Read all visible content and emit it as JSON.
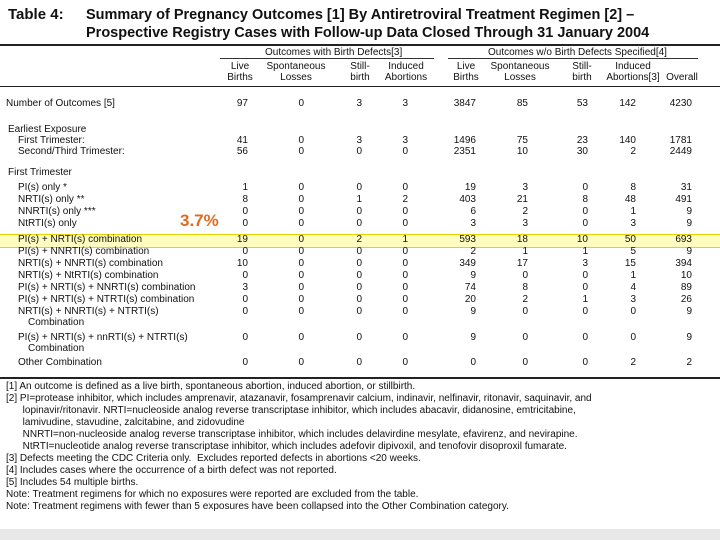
{
  "header": {
    "label": "Table 4:",
    "title_line1": "Summary of Pregnancy Outcomes [1] By Antiretroviral Treatment Regimen [2] –",
    "title_line2": "Prospective Registry Cases with Follow-up Data Closed Through 31 January 2004"
  },
  "columns": {
    "group1": "Outcomes with Birth Defects[3]",
    "group2": "Outcomes w/o Birth Defects Specified[4]",
    "col1_l1": "Live",
    "col1_l2": "Births",
    "col2_l1": "Spontaneous",
    "col2_l2": "Losses",
    "col3_l1": "Still-",
    "col3_l2": "birth",
    "col4_l1": "Induced",
    "col4_l2": "Abortions",
    "col5_l1": "Live",
    "col5_l2": "Births",
    "col6_l1": "Spontaneous",
    "col6_l2": "Losses",
    "col7_l1": "Still-",
    "col7_l2": "birth",
    "col8_l1": "Induced",
    "col8_l2": "Abortions[3]",
    "col9": "Overall"
  },
  "rows": [
    {
      "label": "Number of Outcomes [5]",
      "values": [
        "97",
        "0",
        "3",
        "3",
        "3847",
        "85",
        "53",
        "142",
        "4230"
      ]
    },
    {
      "label": "Earliest Exposure",
      "values": [
        "",
        "",
        "",
        "",
        "",
        "",
        "",
        "",
        ""
      ]
    },
    {
      "label": "First Trimester:",
      "values": [
        "41",
        "0",
        "3",
        "3",
        "1496",
        "75",
        "23",
        "140",
        "1781"
      ]
    },
    {
      "label": "Second/Third Trimester:",
      "values": [
        "56",
        "0",
        "0",
        "0",
        "2351",
        "10",
        "30",
        "2",
        "2449"
      ]
    },
    {
      "label": "First Trimester",
      "values": [
        "",
        "",
        "",
        "",
        "",
        "",
        "",
        "",
        ""
      ]
    },
    {
      "label": "PI(s) only *",
      "values": [
        "1",
        "0",
        "0",
        "0",
        "19",
        "3",
        "0",
        "8",
        "31"
      ]
    },
    {
      "label": "NRTI(s) only **",
      "values": [
        "8",
        "0",
        "1",
        "2",
        "403",
        "21",
        "8",
        "48",
        "491"
      ]
    },
    {
      "label": "NNRTI(s) only ***",
      "values": [
        "0",
        "0",
        "0",
        "0",
        "6",
        "2",
        "0",
        "1",
        "9"
      ]
    },
    {
      "label": "NtRTI(s) only",
      "values": [
        "0",
        "0",
        "0",
        "0",
        "3",
        "3",
        "0",
        "3",
        "9"
      ]
    },
    {
      "label": "PI(s) + NRTI(s) combination",
      "values": [
        "19",
        "0",
        "2",
        "1",
        "593",
        "18",
        "10",
        "50",
        "693"
      ]
    },
    {
      "label": "PI(s) + NNRTI(s) combination",
      "values": [
        "0",
        "0",
        "0",
        "0",
        "2",
        "1",
        "1",
        "5",
        "9"
      ]
    },
    {
      "label": "NRTI(s) + NNRTI(s) combination",
      "values": [
        "10",
        "0",
        "0",
        "0",
        "349",
        "17",
        "3",
        "15",
        "394"
      ]
    },
    {
      "label": "NRTI(s) + NtRTI(s) combination",
      "values": [
        "0",
        "0",
        "0",
        "0",
        "9",
        "0",
        "0",
        "1",
        "10"
      ]
    },
    {
      "label": "PI(s) + NRTI(s) + NNRTI(s) combination",
      "values": [
        "3",
        "0",
        "0",
        "0",
        "74",
        "8",
        "0",
        "4",
        "89"
      ]
    },
    {
      "label": "PI(s) + NRTI(s) + NTRTI(s) combination",
      "values": [
        "0",
        "0",
        "0",
        "0",
        "20",
        "2",
        "1",
        "3",
        "26"
      ]
    },
    {
      "label": "NRTI(s) + NNRTI(s) + NTRTI(s)",
      "label2": "Combination",
      "values": [
        "0",
        "0",
        "0",
        "0",
        "9",
        "0",
        "0",
        "0",
        "9"
      ]
    },
    {
      "label": "PI(s) + NRTI(s) + nnRTI(s) + NTRTI(s)",
      "label2": "Combination",
      "values": [
        "0",
        "0",
        "0",
        "0",
        "9",
        "0",
        "0",
        "0",
        "9"
      ]
    },
    {
      "label": "Other Combination",
      "values": [
        "0",
        "0",
        "0",
        "0",
        "0",
        "0",
        "0",
        "2",
        "2"
      ]
    }
  ],
  "highlight_note": "3.7%",
  "footnotes": [
    "[1] An outcome is defined as a live birth, spontaneous abortion, induced abortion, or stillbirth.",
    "[2] PI=protease inhibitor, which includes amprenavir, atazanavir, fosamprenavir calcium, indinavir, nelfinavir, ritonavir, saquinavir, and",
    "      lopinavir/ritonavir. NRTI=nucleoside analog reverse transcriptase inhibitor, which includes abacavir, didanosine, emtricitabine,",
    "      lamivudine, stavudine, zalcitabine, and zidovudine",
    "      NNRTI=non-nucleoside analog reverse transcriptase inhibitor, which includes delavirdine mesylate, efavirenz, and nevirapine.",
    "      NtRTI=nucleotide analog reverse transcriptase inhibitor, which includes adefovir dipivoxil, and tenofovir disoproxil fumarate.",
    "[3] Defects meeting the CDC Criteria only.  Excludes reported defects in abortions <20 weeks.",
    "[4] Includes cases where the occurrence of a birth defect was not reported.",
    "[5] Includes 54 multiple births.",
    "Note: Treatment regimens for which no exposures were reported are excluded from the table.",
    "Note: Treatment regimens with fewer than 5 exposures have been collapsed into the Other Combination category."
  ],
  "colors": {
    "highlight": "#fffcc0",
    "highlight_border": "#e6d400",
    "annotation": "#e26b1f"
  }
}
